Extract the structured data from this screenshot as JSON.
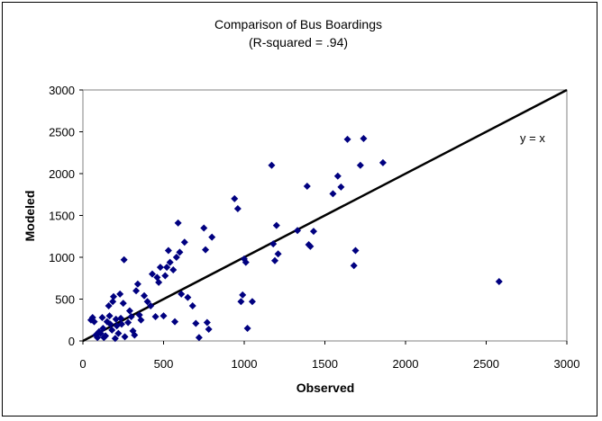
{
  "chart_data": {
    "type": "scatter",
    "title": "Comparison of Bus Boardings",
    "subtitle": "(R-squared = .94)",
    "xlabel": "Observed",
    "ylabel": "Modeled",
    "xlim": [
      0,
      3000
    ],
    "ylim": [
      0,
      3000
    ],
    "xticks": [
      "0",
      "500",
      "1000",
      "1500",
      "2000",
      "2500",
      "3000"
    ],
    "yticks": [
      "0",
      "500",
      "1000",
      "1500",
      "2000",
      "2500",
      "3000"
    ],
    "grid": false,
    "marker_color": "#000080",
    "line_color": "#000000",
    "line_annotation": "y = x",
    "reference_line": {
      "x": [
        0,
        3000
      ],
      "y": [
        0,
        3000
      ]
    },
    "points": [
      [
        50,
        250
      ],
      [
        60,
        280
      ],
      [
        70,
        230
      ],
      [
        80,
        70
      ],
      [
        90,
        40
      ],
      [
        100,
        110
      ],
      [
        110,
        90
      ],
      [
        120,
        280
      ],
      [
        125,
        150
      ],
      [
        130,
        40
      ],
      [
        140,
        60
      ],
      [
        150,
        230
      ],
      [
        160,
        420
      ],
      [
        165,
        300
      ],
      [
        170,
        200
      ],
      [
        180,
        130
      ],
      [
        185,
        470
      ],
      [
        190,
        530
      ],
      [
        200,
        30
      ],
      [
        205,
        260
      ],
      [
        210,
        180
      ],
      [
        220,
        90
      ],
      [
        230,
        560
      ],
      [
        235,
        270
      ],
      [
        240,
        200
      ],
      [
        250,
        450
      ],
      [
        255,
        970
      ],
      [
        260,
        50
      ],
      [
        280,
        220
      ],
      [
        290,
        360
      ],
      [
        300,
        290
      ],
      [
        310,
        120
      ],
      [
        320,
        70
      ],
      [
        330,
        600
      ],
      [
        340,
        680
      ],
      [
        350,
        310
      ],
      [
        360,
        250
      ],
      [
        380,
        540
      ],
      [
        400,
        470
      ],
      [
        420,
        420
      ],
      [
        430,
        800
      ],
      [
        450,
        290
      ],
      [
        460,
        760
      ],
      [
        470,
        700
      ],
      [
        480,
        880
      ],
      [
        500,
        300
      ],
      [
        510,
        780
      ],
      [
        520,
        880
      ],
      [
        530,
        1080
      ],
      [
        540,
        940
      ],
      [
        560,
        850
      ],
      [
        570,
        230
      ],
      [
        580,
        1000
      ],
      [
        590,
        1410
      ],
      [
        600,
        1060
      ],
      [
        610,
        560
      ],
      [
        630,
        1180
      ],
      [
        650,
        520
      ],
      [
        680,
        420
      ],
      [
        700,
        210
      ],
      [
        720,
        40
      ],
      [
        750,
        1350
      ],
      [
        760,
        1090
      ],
      [
        770,
        220
      ],
      [
        780,
        140
      ],
      [
        800,
        1240
      ],
      [
        940,
        1700
      ],
      [
        960,
        1580
      ],
      [
        980,
        470
      ],
      [
        990,
        550
      ],
      [
        1000,
        980
      ],
      [
        1010,
        940
      ],
      [
        1020,
        150
      ],
      [
        1050,
        470
      ],
      [
        1170,
        2100
      ],
      [
        1180,
        1160
      ],
      [
        1190,
        960
      ],
      [
        1200,
        1380
      ],
      [
        1210,
        1040
      ],
      [
        1330,
        1320
      ],
      [
        1390,
        1850
      ],
      [
        1400,
        1150
      ],
      [
        1410,
        1130
      ],
      [
        1430,
        1310
      ],
      [
        1550,
        1760
      ],
      [
        1580,
        1970
      ],
      [
        1600,
        1840
      ],
      [
        1640,
        2410
      ],
      [
        1680,
        900
      ],
      [
        1690,
        1080
      ],
      [
        1720,
        2100
      ],
      [
        1740,
        2420
      ],
      [
        1860,
        2130
      ],
      [
        2580,
        710
      ]
    ]
  }
}
